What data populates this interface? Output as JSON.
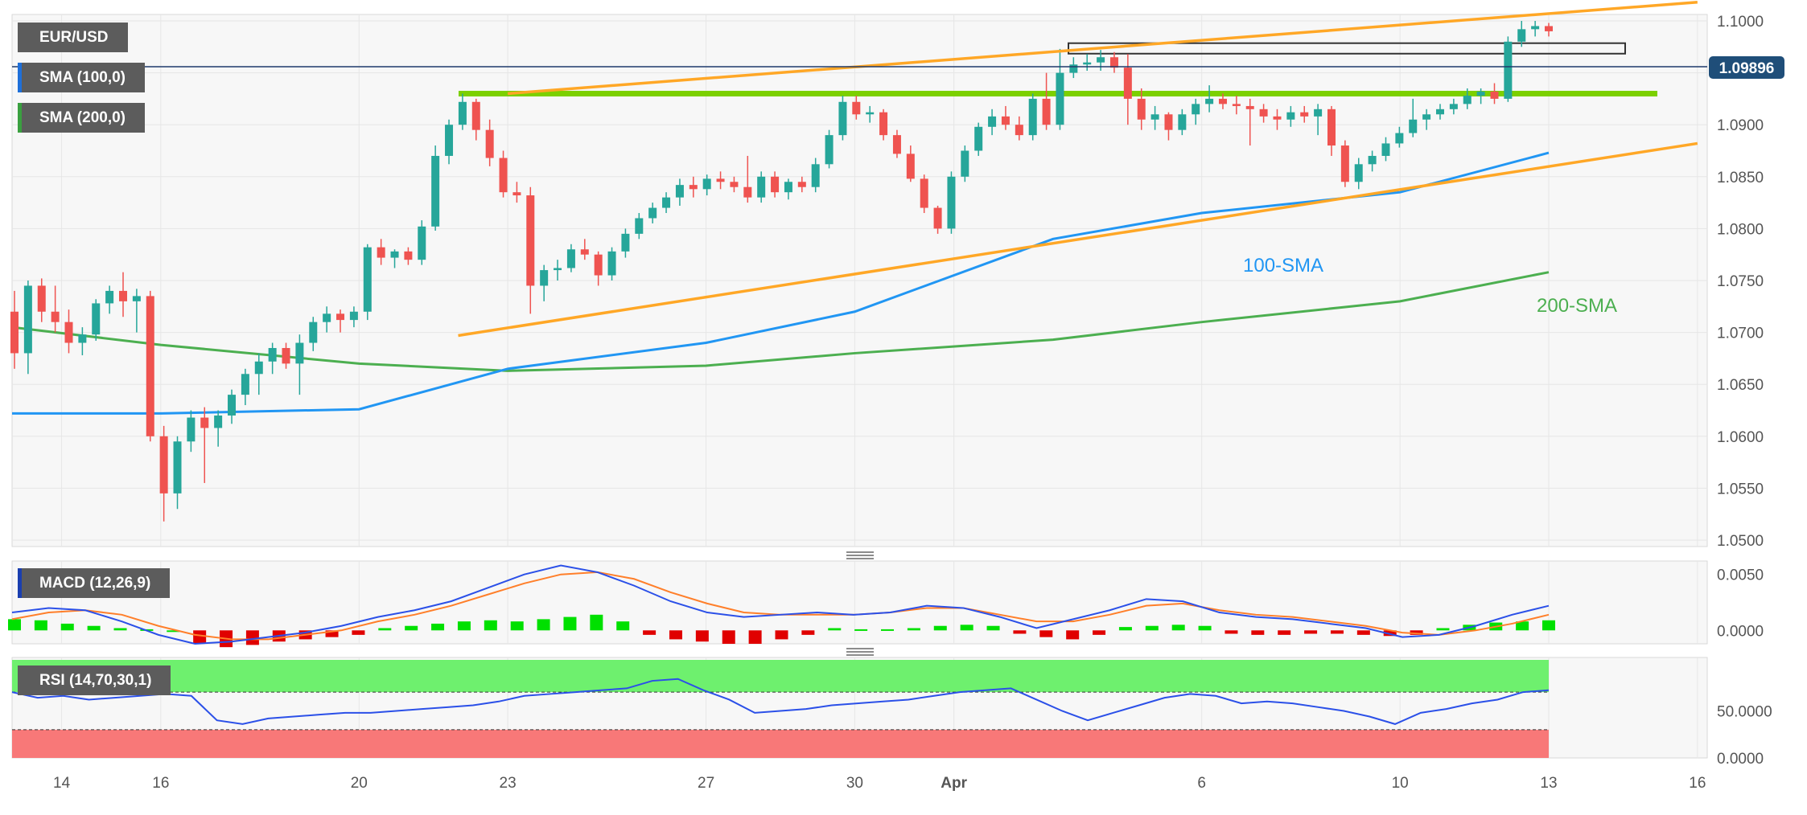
{
  "legend": {
    "symbol": "EUR/USD",
    "sma100_label": "SMA (100,0)",
    "sma200_label": "SMA (200,0)",
    "macd_label": "MACD (12,26,9)",
    "rsi_label": "RSI (14,70,30,1)"
  },
  "current_price": "1.09896",
  "annotations": {
    "sma100": "100-SMA",
    "sma200": "200-SMA"
  },
  "colors": {
    "up": "#26a69a",
    "down": "#ef5350",
    "sma100": "#2196f3",
    "sma200": "#4caf50",
    "trendline": "#ffa726",
    "resistance": "#7cd000",
    "macd_line": "#2b50e8",
    "signal_line": "#ff7f2a",
    "hist_up": "#00e000",
    "hist_down": "#e00000",
    "rsi_line": "#2b50e8",
    "rsi_overbought": "#6ef06e",
    "rsi_oversold": "#f87878",
    "price_tag": "#1f4e79"
  },
  "chart_data": [
    {
      "type": "candlestick",
      "title": "EUR/USD",
      "ylim": [
        1.05,
        1.1
      ],
      "y_ticks": [
        "1.0500",
        "1.0550",
        "1.0600",
        "1.0650",
        "1.0700",
        "1.0750",
        "1.0800",
        "1.0850",
        "1.0900",
        "1.0950",
        "1.1000"
      ],
      "x_ticks": [
        "14",
        "16",
        "20",
        "23",
        "27",
        "30",
        "Apr",
        "6",
        "10",
        "13",
        "16"
      ],
      "grid": true,
      "series": [
        {
          "name": "SMA (100,0)",
          "points": [
            [
              "13 Mar",
              1.0622
            ],
            [
              "16 Mar",
              1.0622
            ],
            [
              "20 Mar",
              1.0626
            ],
            [
              "23 Mar",
              1.0665
            ],
            [
              "27 Mar",
              1.069
            ],
            [
              "30 Mar",
              1.072
            ],
            [
              "3 Apr",
              1.079
            ],
            [
              "6 Apr",
              1.0815
            ],
            [
              "10 Apr",
              1.0835
            ],
            [
              "13 Apr",
              1.0873
            ]
          ]
        },
        {
          "name": "SMA (200,0)",
          "points": [
            [
              "13 Mar",
              1.0705
            ],
            [
              "16 Mar",
              1.0688
            ],
            [
              "20 Mar",
              1.067
            ],
            [
              "23 Mar",
              1.0663
            ],
            [
              "27 Mar",
              1.0668
            ],
            [
              "30 Mar",
              1.068
            ],
            [
              "3 Apr",
              1.0693
            ],
            [
              "6 Apr",
              1.071
            ],
            [
              "10 Apr",
              1.073
            ],
            [
              "13 Apr",
              1.0758
            ]
          ]
        }
      ],
      "levels": [
        {
          "name": "resistance",
          "value": 1.093
        },
        {
          "name": "resistance_zone",
          "from": 1.097,
          "to": 1.0977
        }
      ],
      "trendlines": [
        {
          "name": "upper",
          "from": [
            "23 Mar",
            1.093
          ],
          "to": [
            "16 Apr",
            1.1018
          ]
        },
        {
          "name": "lower",
          "from": [
            "22 Mar",
            1.0697
          ],
          "to": [
            "16 Apr",
            1.0882
          ]
        }
      ],
      "candles_ohlc": [
        [
          1.072,
          1.074,
          1.0665,
          1.068
        ],
        [
          1.068,
          1.075,
          1.066,
          1.0745
        ],
        [
          1.0745,
          1.0752,
          1.071,
          1.072
        ],
        [
          1.072,
          1.0745,
          1.07,
          1.071
        ],
        [
          1.071,
          1.0722,
          1.068,
          1.069
        ],
        [
          1.069,
          1.0705,
          1.0678,
          1.0698
        ],
        [
          1.0698,
          1.0732,
          1.0692,
          1.0728
        ],
        [
          1.0728,
          1.0745,
          1.0718,
          1.074
        ],
        [
          1.074,
          1.0758,
          1.0715,
          1.073
        ],
        [
          1.073,
          1.0742,
          1.07,
          1.0735
        ],
        [
          1.0735,
          1.074,
          1.0595,
          1.06
        ],
        [
          1.06,
          1.061,
          1.0518,
          1.0545
        ],
        [
          1.0545,
          1.06,
          1.053,
          1.0595
        ],
        [
          1.0595,
          1.0625,
          1.0585,
          1.0618
        ],
        [
          1.0618,
          1.0628,
          1.0555,
          1.0608
        ],
        [
          1.0608,
          1.0625,
          1.059,
          1.062
        ],
        [
          1.062,
          1.0645,
          1.0612,
          1.064
        ],
        [
          1.064,
          1.0665,
          1.063,
          1.066
        ],
        [
          1.066,
          1.068,
          1.064,
          1.0672
        ],
        [
          1.0672,
          1.069,
          1.066,
          1.0685
        ],
        [
          1.0685,
          1.069,
          1.0665,
          1.067
        ],
        [
          1.067,
          1.0698,
          1.064,
          1.069
        ],
        [
          1.069,
          1.0715,
          1.0682,
          1.071
        ],
        [
          1.071,
          1.0725,
          1.07,
          1.0718
        ],
        [
          1.0718,
          1.0722,
          1.07,
          1.0712
        ],
        [
          1.0712,
          1.0725,
          1.0705,
          1.072
        ],
        [
          1.072,
          1.0785,
          1.0712,
          1.0782
        ],
        [
          1.0782,
          1.079,
          1.0765,
          1.0772
        ],
        [
          1.0772,
          1.078,
          1.0762,
          1.0778
        ],
        [
          1.0778,
          1.0782,
          1.0765,
          1.077
        ],
        [
          1.077,
          1.0808,
          1.0765,
          1.0802
        ],
        [
          1.0802,
          1.088,
          1.0798,
          1.087
        ],
        [
          1.087,
          1.0905,
          1.0862,
          1.09
        ],
        [
          1.09,
          1.093,
          1.0895,
          1.0922
        ],
        [
          1.0922,
          1.0925,
          1.0885,
          1.0895
        ],
        [
          1.0895,
          1.0905,
          1.086,
          1.0868
        ],
        [
          1.0868,
          1.0875,
          1.083,
          1.0835
        ],
        [
          1.0835,
          1.0845,
          1.0825,
          1.0832
        ],
        [
          1.0832,
          1.084,
          1.0718,
          1.0745
        ],
        [
          1.0745,
          1.0765,
          1.073,
          1.076
        ],
        [
          1.076,
          1.077,
          1.075,
          1.0762
        ],
        [
          1.0762,
          1.0785,
          1.0758,
          1.078
        ],
        [
          1.078,
          1.079,
          1.077,
          1.0775
        ],
        [
          1.0775,
          1.0778,
          1.0745,
          1.0755
        ],
        [
          1.0755,
          1.0782,
          1.075,
          1.0778
        ],
        [
          1.0778,
          1.08,
          1.0772,
          1.0795
        ],
        [
          1.0795,
          1.0815,
          1.079,
          1.081
        ],
        [
          1.081,
          1.0825,
          1.0805,
          1.082
        ],
        [
          1.082,
          1.0835,
          1.0815,
          1.083
        ],
        [
          1.083,
          1.0848,
          1.0822,
          1.0842
        ],
        [
          1.0842,
          1.085,
          1.083,
          1.0838
        ],
        [
          1.0838,
          1.0852,
          1.0832,
          1.0848
        ],
        [
          1.0848,
          1.0855,
          1.0838,
          1.0845
        ],
        [
          1.0845,
          1.085,
          1.0835,
          1.084
        ],
        [
          1.084,
          1.087,
          1.0825,
          1.083
        ],
        [
          1.083,
          1.0855,
          1.0825,
          1.085
        ],
        [
          1.085,
          1.0855,
          1.083,
          1.0835
        ],
        [
          1.0835,
          1.0848,
          1.0828,
          1.0845
        ],
        [
          1.0845,
          1.085,
          1.0835,
          1.084
        ],
        [
          1.084,
          1.0868,
          1.0835,
          1.0862
        ],
        [
          1.0862,
          1.0895,
          1.0858,
          1.089
        ],
        [
          1.089,
          1.0928,
          1.0885,
          1.0922
        ],
        [
          1.0922,
          1.0928,
          1.0905,
          1.091
        ],
        [
          1.091,
          1.0918,
          1.0902,
          1.0912
        ],
        [
          1.0912,
          1.0915,
          1.0885,
          1.089
        ],
        [
          1.089,
          1.0895,
          1.0868,
          1.0872
        ],
        [
          1.0872,
          1.088,
          1.0845,
          1.0848
        ],
        [
          1.0848,
          1.0852,
          1.0815,
          1.082
        ],
        [
          1.082,
          1.0822,
          1.0795,
          1.08
        ],
        [
          1.08,
          1.0855,
          1.0795,
          1.085
        ],
        [
          1.085,
          1.088,
          1.0845,
          1.0875
        ],
        [
          1.0875,
          1.0902,
          1.087,
          1.0898
        ],
        [
          1.0898,
          1.0915,
          1.089,
          1.0908
        ],
        [
          1.0908,
          1.0918,
          1.0895,
          1.09
        ],
        [
          1.09,
          1.0908,
          1.0885,
          1.089
        ],
        [
          1.089,
          1.093,
          1.0885,
          1.0925
        ],
        [
          1.0925,
          1.095,
          1.0895,
          1.09
        ],
        [
          1.09,
          1.0973,
          1.0895,
          1.095
        ],
        [
          1.095,
          1.0965,
          1.0945,
          1.0958
        ],
        [
          1.0958,
          1.0968,
          1.0952,
          1.096
        ],
        [
          1.096,
          1.0972,
          1.0952,
          1.0965
        ],
        [
          1.0965,
          1.097,
          1.095,
          1.0955
        ],
        [
          1.0955,
          1.0968,
          1.09,
          1.0925
        ],
        [
          1.0925,
          1.0935,
          1.0895,
          1.0905
        ],
        [
          1.0905,
          1.0918,
          1.0895,
          1.091
        ],
        [
          1.091,
          1.0912,
          1.0885,
          1.0895
        ],
        [
          1.0895,
          1.0915,
          1.089,
          1.091
        ],
        [
          1.091,
          1.0925,
          1.09,
          1.092
        ],
        [
          1.092,
          1.0938,
          1.0912,
          1.0925
        ],
        [
          1.0925,
          1.093,
          1.0915,
          1.092
        ],
        [
          1.092,
          1.0928,
          1.091,
          1.0918
        ],
        [
          1.0918,
          1.0925,
          1.088,
          1.0915
        ],
        [
          1.0915,
          1.092,
          1.0902,
          1.0908
        ],
        [
          1.0908,
          1.0915,
          1.0895,
          1.0905
        ],
        [
          1.0905,
          1.0918,
          1.0898,
          1.0912
        ],
        [
          1.0912,
          1.0918,
          1.0902,
          1.0908
        ],
        [
          1.0908,
          1.092,
          1.089,
          1.0915
        ],
        [
          1.0915,
          1.0918,
          1.087,
          1.088
        ],
        [
          1.088,
          1.0885,
          1.084,
          1.0845
        ],
        [
          1.0845,
          1.0868,
          1.0838,
          1.0862
        ],
        [
          1.0862,
          1.0875,
          1.0855,
          1.087
        ],
        [
          1.087,
          1.0888,
          1.0865,
          1.0882
        ],
        [
          1.0882,
          1.0898,
          1.0878,
          1.0892
        ],
        [
          1.0892,
          1.0925,
          1.0888,
          1.0905
        ],
        [
          1.0905,
          1.0915,
          1.0895,
          1.091
        ],
        [
          1.091,
          1.092,
          1.0905,
          1.0915
        ],
        [
          1.0915,
          1.0925,
          1.091,
          1.092
        ],
        [
          1.092,
          1.0935,
          1.0915,
          1.0928
        ],
        [
          1.0928,
          1.0935,
          1.092,
          1.0932
        ],
        [
          1.0932,
          1.094,
          1.092,
          1.0925
        ],
        [
          1.0925,
          1.0985,
          1.0922,
          1.098
        ],
        [
          1.098,
          1.1,
          1.0975,
          1.0992
        ],
        [
          1.0992,
          1.1,
          1.0985,
          1.0995
        ],
        [
          1.0995,
          1.0998,
          1.0985,
          1.099
        ]
      ]
    },
    {
      "type": "line",
      "title": "MACD (12,26,9)",
      "ylim": [
        -0.0012,
        0.0062
      ],
      "y_ticks": [
        "0.0050",
        "0.0000"
      ],
      "series": [
        {
          "name": "MACD",
          "points": [
            0.0016,
            0.002,
            0.0018,
            0.0008,
            -0.0004,
            -0.0012,
            -0.001,
            -0.0006,
            -0.0002,
            0.0004,
            0.0012,
            0.0018,
            0.0026,
            0.0038,
            0.005,
            0.0058,
            0.0052,
            0.004,
            0.0026,
            0.0016,
            0.0012,
            0.0014,
            0.0016,
            0.0014,
            0.0016,
            0.0022,
            0.002,
            0.0012,
            0.0002,
            0.001,
            0.0018,
            0.0028,
            0.0026,
            0.0016,
            0.0012,
            0.001,
            0.0006,
            0.0002,
            -0.0006,
            -0.0004,
            0.0004,
            0.0014,
            0.0022
          ]
        },
        {
          "name": "Signal",
          "points": [
            0.001,
            0.0016,
            0.0018,
            0.0014,
            0.0004,
            -0.0004,
            -0.0008,
            -0.0008,
            -0.0004,
            0.0,
            0.0008,
            0.0014,
            0.0022,
            0.0032,
            0.0042,
            0.005,
            0.0052,
            0.0046,
            0.0034,
            0.0024,
            0.0016,
            0.0014,
            0.0014,
            0.0014,
            0.0016,
            0.002,
            0.002,
            0.0014,
            0.0008,
            0.0008,
            0.0014,
            0.0022,
            0.0024,
            0.0018,
            0.0014,
            0.0012,
            0.0008,
            0.0004,
            -0.0002,
            -0.0004,
            0.0,
            0.0006,
            0.0014
          ]
        }
      ],
      "histogram": [
        0.001,
        0.0009,
        0.0006,
        0.0004,
        0.0002,
        0.0001,
        0.0,
        -0.0012,
        -0.0015,
        -0.0013,
        -0.001,
        -0.0008,
        -0.0006,
        -0.0004,
        0.0002,
        0.0004,
        0.0006,
        0.0008,
        0.0009,
        0.0008,
        0.001,
        0.0012,
        0.0014,
        0.0008,
        -0.0004,
        -0.0008,
        -0.001,
        -0.0012,
        -0.0012,
        -0.0008,
        -0.0004,
        0.0002,
        0.0001,
        0.0001,
        0.0002,
        0.0004,
        0.0005,
        0.0004,
        -0.0003,
        -0.0006,
        -0.0008,
        -0.0004,
        0.0003,
        0.0004,
        0.0005,
        0.0004,
        -0.0003,
        -0.0004,
        -0.0004,
        -0.0003,
        -0.0003,
        -0.0004,
        -0.0005,
        -0.0004,
        0.0002,
        0.0005,
        0.0007,
        0.0008,
        0.0009
      ]
    },
    {
      "type": "line",
      "title": "RSI (14,70,30,1)",
      "ylim": [
        0,
        100
      ],
      "y_ticks": [
        "50.0000",
        "0.0000"
      ],
      "levels": [
        70,
        30
      ],
      "series": [
        {
          "name": "RSI",
          "points": [
            70,
            64,
            66,
            62,
            64,
            66,
            68,
            66,
            40,
            36,
            42,
            44,
            46,
            48,
            48,
            50,
            52,
            54,
            56,
            60,
            66,
            68,
            70,
            72,
            74,
            82,
            84,
            72,
            62,
            48,
            50,
            52,
            56,
            58,
            60,
            62,
            66,
            70,
            72,
            74,
            62,
            50,
            40,
            48,
            56,
            64,
            68,
            66,
            58,
            60,
            58,
            54,
            50,
            44,
            36,
            48,
            52,
            58,
            62,
            70,
            72
          ]
        }
      ]
    }
  ]
}
